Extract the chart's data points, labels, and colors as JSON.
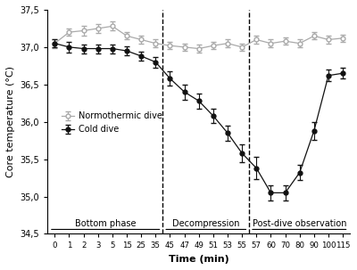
{
  "norm_x": [
    0,
    1,
    2,
    3,
    5,
    15,
    25,
    35,
    45,
    47,
    49,
    51,
    53,
    55,
    57,
    60,
    70,
    80,
    90,
    100,
    115
  ],
  "norm_y": [
    37.05,
    37.2,
    37.22,
    37.25,
    37.28,
    37.15,
    37.1,
    37.05,
    37.02,
    37.0,
    36.98,
    37.02,
    37.05,
    37.0,
    37.1,
    37.05,
    37.08,
    37.05,
    37.15,
    37.1,
    37.12
  ],
  "norm_yerr": [
    0.06,
    0.05,
    0.07,
    0.06,
    0.06,
    0.05,
    0.05,
    0.05,
    0.05,
    0.05,
    0.05,
    0.05,
    0.05,
    0.05,
    0.05,
    0.05,
    0.05,
    0.05,
    0.05,
    0.05,
    0.05
  ],
  "cold_y": [
    37.05,
    37.0,
    36.98,
    36.98,
    36.98,
    36.95,
    36.88,
    36.8,
    36.58,
    36.4,
    36.28,
    36.08,
    35.85,
    35.58,
    35.38,
    35.05,
    35.05,
    35.32,
    35.88,
    36.62,
    36.65
  ],
  "cold_yerr": [
    0.05,
    0.07,
    0.06,
    0.06,
    0.06,
    0.06,
    0.06,
    0.07,
    0.1,
    0.1,
    0.1,
    0.1,
    0.1,
    0.12,
    0.15,
    0.1,
    0.1,
    0.1,
    0.12,
    0.08,
    0.07
  ],
  "norm_color": "#aaaaaa",
  "cold_color": "#111111",
  "vline1_idx": 8,
  "vline2_idx": 13,
  "ylim": [
    34.5,
    37.5
  ],
  "yticks": [
    34.5,
    35.0,
    35.5,
    36.0,
    36.5,
    37.0,
    37.5
  ],
  "xlabel": "Time (min)",
  "ylabel": "Core temperature (°C)",
  "legend_norm": "Normothermic dive",
  "legend_cold": "Cold dive",
  "phase_labels": [
    "Bottom phase",
    "Decompression",
    "Post-dive observation"
  ],
  "background_color": "#ffffff"
}
